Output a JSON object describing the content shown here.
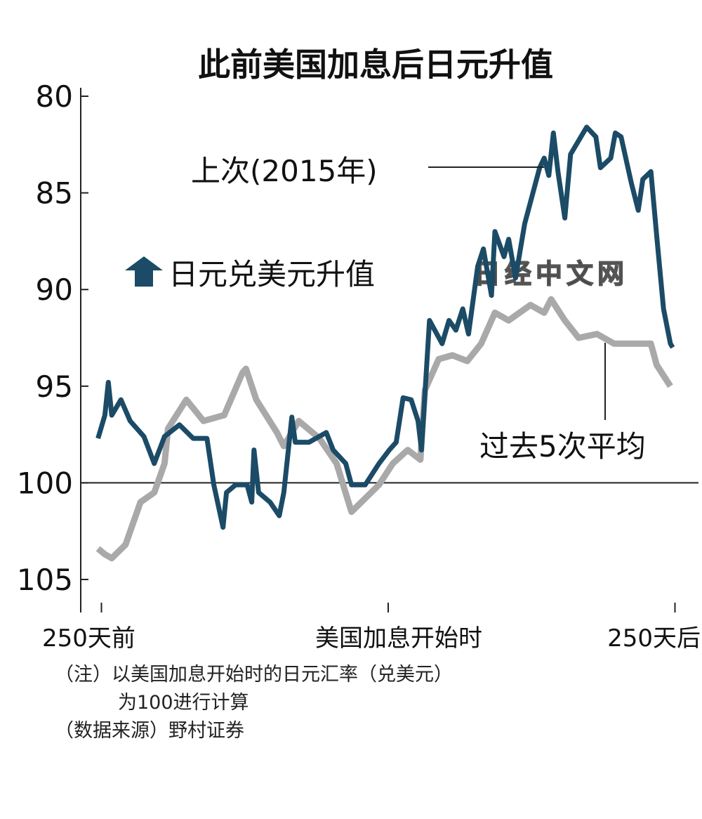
{
  "chart_data": {
    "type": "line",
    "title": "此前美国加息后日元升值",
    "y_inverted": true,
    "ylim": [
      80,
      107
    ],
    "yticks": [
      "80",
      "85",
      "90",
      "95",
      "100",
      "105"
    ],
    "ytick_values": [
      80,
      85,
      90,
      95,
      100,
      105
    ],
    "xlim": [
      -260,
      260
    ],
    "xticks": [
      {
        "value": -250,
        "label": "250天前"
      },
      {
        "value": 0,
        "label": "美国加息开始时"
      },
      {
        "value": 250,
        "label": "250天后"
      }
    ],
    "reference_line": 100,
    "direction_note": "日元兑美元升值",
    "colors": {
      "series_2015": "#1b4b66",
      "series_avg": "#a9a9a9",
      "arrow": "#1b4b66"
    },
    "series": [
      {
        "name": "上次(2015年)",
        "points": [
          [
            -253,
            97.7
          ],
          [
            -247,
            96.5
          ],
          [
            -244,
            94.8
          ],
          [
            -241,
            96.5
          ],
          [
            -233,
            95.7
          ],
          [
            -225,
            96.8
          ],
          [
            -213,
            97.6
          ],
          [
            -204,
            99.0
          ],
          [
            -195,
            97.6
          ],
          [
            -182,
            97.0
          ],
          [
            -170,
            97.7
          ],
          [
            -158,
            97.7
          ],
          [
            -152,
            100.1
          ],
          [
            -144,
            102.3
          ],
          [
            -141,
            100.5
          ],
          [
            -133,
            100.1
          ],
          [
            -123,
            100.1
          ],
          [
            -119,
            101.0
          ],
          [
            -117,
            98.3
          ],
          [
            -113,
            100.5
          ],
          [
            -103,
            101.0
          ],
          [
            -95,
            101.7
          ],
          [
            -91,
            100.5
          ],
          [
            -84,
            96.6
          ],
          [
            -81,
            97.9
          ],
          [
            -69,
            97.9
          ],
          [
            -54,
            97.4
          ],
          [
            -48,
            98.3
          ],
          [
            -37,
            99.0
          ],
          [
            -32,
            100.1
          ],
          [
            -20,
            100.1
          ],
          [
            -8,
            99.0
          ],
          [
            1,
            98.3
          ],
          [
            7,
            97.9
          ],
          [
            13,
            95.6
          ],
          [
            20,
            95.7
          ],
          [
            26,
            96.8
          ],
          [
            29,
            98.3
          ],
          [
            32,
            95.4
          ],
          [
            36,
            91.6
          ],
          [
            47,
            92.8
          ],
          [
            53,
            91.6
          ],
          [
            59,
            92.1
          ],
          [
            65,
            91.0
          ],
          [
            70,
            92.3
          ],
          [
            78,
            88.8
          ],
          [
            83,
            87.9
          ],
          [
            90,
            90.3
          ],
          [
            93,
            87.0
          ],
          [
            101,
            88.3
          ],
          [
            105,
            87.4
          ],
          [
            111,
            89.4
          ],
          [
            119,
            86.6
          ],
          [
            132,
            83.7
          ],
          [
            136,
            83.2
          ],
          [
            140,
            84.1
          ],
          [
            144,
            81.9
          ],
          [
            148,
            83.9
          ],
          [
            154,
            86.3
          ],
          [
            159,
            83.0
          ],
          [
            168,
            82.1
          ],
          [
            173,
            81.6
          ],
          [
            181,
            82.1
          ],
          [
            185,
            83.7
          ],
          [
            194,
            83.2
          ],
          [
            198,
            81.9
          ],
          [
            203,
            82.1
          ],
          [
            212,
            84.5
          ],
          [
            218,
            85.9
          ],
          [
            222,
            84.3
          ],
          [
            229,
            83.9
          ],
          [
            234,
            87.2
          ],
          [
            240,
            91.0
          ],
          [
            246,
            92.8
          ],
          [
            248,
            93.0
          ]
        ]
      },
      {
        "name": "过去5次平均",
        "points": [
          [
            -253,
            103.4
          ],
          [
            -247,
            103.7
          ],
          [
            -241,
            103.9
          ],
          [
            -229,
            103.2
          ],
          [
            -216,
            101.0
          ],
          [
            -204,
            100.5
          ],
          [
            -195,
            99.0
          ],
          [
            -192,
            97.2
          ],
          [
            -176,
            95.7
          ],
          [
            -161,
            96.8
          ],
          [
            -143,
            96.5
          ],
          [
            -127,
            94.3
          ],
          [
            -124,
            94.1
          ],
          [
            -115,
            95.7
          ],
          [
            -97,
            97.4
          ],
          [
            -91,
            98.1
          ],
          [
            -78,
            96.8
          ],
          [
            -60,
            97.7
          ],
          [
            -45,
            99.0
          ],
          [
            -32,
            101.5
          ],
          [
            -20,
            100.8
          ],
          [
            -8,
            100.1
          ],
          [
            4,
            99.0
          ],
          [
            17,
            98.3
          ],
          [
            28,
            98.8
          ],
          [
            32,
            95.2
          ],
          [
            44,
            93.6
          ],
          [
            56,
            93.4
          ],
          [
            69,
            93.7
          ],
          [
            81,
            92.8
          ],
          [
            93,
            91.2
          ],
          [
            105,
            91.6
          ],
          [
            124,
            90.8
          ],
          [
            136,
            91.2
          ],
          [
            142,
            90.5
          ],
          [
            154,
            91.6
          ],
          [
            166,
            92.5
          ],
          [
            182,
            92.3
          ],
          [
            197,
            92.8
          ],
          [
            212,
            92.8
          ],
          [
            229,
            92.8
          ],
          [
            234,
            93.9
          ],
          [
            246,
            95.0
          ]
        ]
      }
    ]
  },
  "notes": {
    "line1": "（注）以美国加息开始时的日元汇率（兑美元）",
    "line2": "为100进行计算",
    "line3": "（数据来源）野村证券"
  },
  "watermark": "日经中文网"
}
